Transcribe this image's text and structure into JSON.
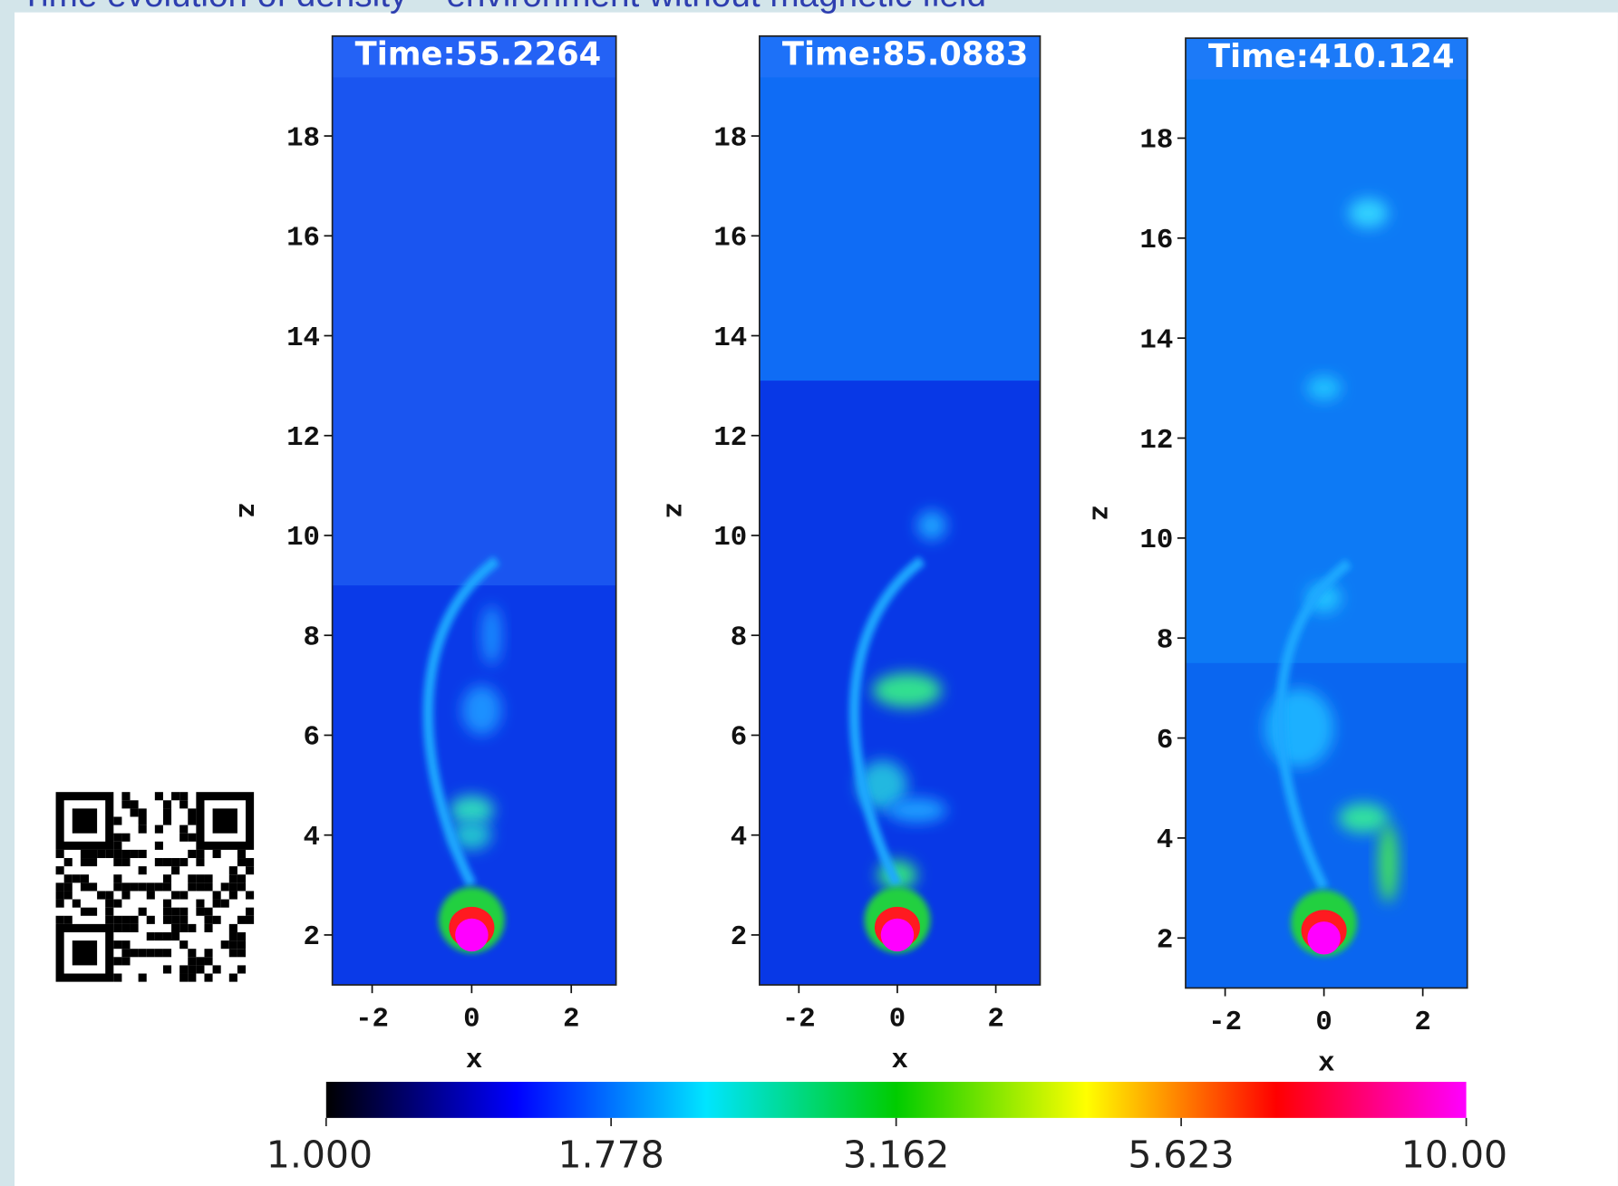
{
  "title": "Time evolution of density – environment without magnetic field",
  "chart_data": [
    {
      "type": "heatmap",
      "title": "Time:55.2264",
      "xlabel": "x",
      "ylabel": "z",
      "xlim": [
        -2.8,
        2.9
      ],
      "ylim": [
        1,
        20
      ],
      "xticks": [
        -2,
        0,
        2
      ],
      "yticks": [
        2,
        4,
        6,
        8,
        10,
        12,
        14,
        16,
        18
      ]
    },
    {
      "type": "heatmap",
      "title": "Time:85.0883",
      "xlabel": "x",
      "ylabel": "z",
      "xlim": [
        -2.8,
        2.9
      ],
      "ylim": [
        1,
        20
      ],
      "xticks": [
        -2,
        0,
        2
      ],
      "yticks": [
        2,
        4,
        6,
        8,
        10,
        12,
        14,
        16,
        18
      ]
    },
    {
      "type": "heatmap",
      "title": "Time:410.124",
      "xlabel": "x",
      "ylabel": "z",
      "xlim": [
        -2.8,
        2.9
      ],
      "ylim": [
        1,
        20
      ],
      "xticks": [
        -2,
        0,
        2
      ],
      "yticks": [
        2,
        4,
        6,
        8,
        10,
        12,
        14,
        16,
        18
      ]
    }
  ],
  "colorbar": {
    "log": true,
    "lim": [
      1,
      10
    ],
    "colors": [
      "#000000",
      "#0000ff",
      "#00e5ff",
      "#00cc00",
      "#ffff00",
      "#ff0000",
      "#ff00ff"
    ],
    "ticks": [
      {
        "value": 1,
        "label": "1.000"
      },
      1.778,
      3.162,
      5.623,
      {
        "value": 10,
        "label": "10.00"
      }
    ]
  }
}
